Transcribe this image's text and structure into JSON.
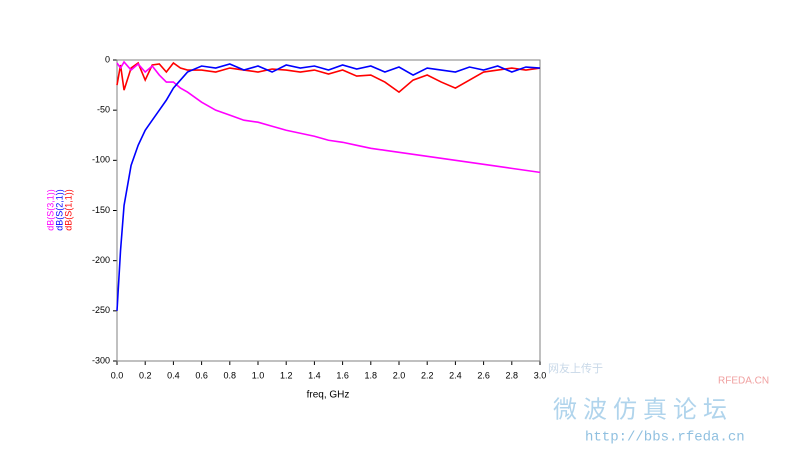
{
  "chart_data": {
    "type": "line",
    "xlabel": "freq, GHz",
    "x": [
      0,
      0.025,
      0.05,
      0.1,
      0.15,
      0.2,
      0.25,
      0.3,
      0.35,
      0.4,
      0.45,
      0.5,
      0.6,
      0.7,
      0.8,
      0.9,
      1.0,
      1.1,
      1.2,
      1.3,
      1.4,
      1.5,
      1.6,
      1.7,
      1.8,
      1.9,
      2.0,
      2.1,
      2.2,
      2.3,
      2.4,
      2.5,
      2.6,
      2.7,
      2.8,
      2.9,
      3.0
    ],
    "series": [
      {
        "name": "dB(S(3,1))",
        "color": "#ff00ff",
        "values": [
          -3,
          -8,
          -2,
          -10,
          -4,
          -12,
          -6,
          -15,
          -22,
          -22,
          -28,
          -32,
          -42,
          -50,
          -55,
          -60,
          -62,
          -66,
          -70,
          -73,
          -76,
          -80,
          -82,
          -85,
          -88,
          -90,
          -92,
          -94,
          -96,
          -98,
          -100,
          -102,
          -104,
          -106,
          -108,
          -110,
          -112
        ]
      },
      {
        "name": "dB(S(2,1))",
        "color": "#0000ff",
        "values": [
          -250,
          -190,
          -145,
          -105,
          -85,
          -70,
          -60,
          -50,
          -40,
          -28,
          -20,
          -12,
          -6,
          -8,
          -4,
          -10,
          -6,
          -12,
          -5,
          -8,
          -6,
          -10,
          -5,
          -9,
          -6,
          -12,
          -7,
          -15,
          -8,
          -10,
          -12,
          -7,
          -10,
          -6,
          -12,
          -7,
          -8
        ]
      },
      {
        "name": "dB(S(1,1))",
        "color": "#ff0000",
        "values": [
          -25,
          -5,
          -30,
          -8,
          -3,
          -20,
          -5,
          -4,
          -12,
          -3,
          -8,
          -10,
          -10,
          -12,
          -8,
          -10,
          -12,
          -9,
          -10,
          -12,
          -10,
          -14,
          -10,
          -16,
          -15,
          -22,
          -32,
          -20,
          -15,
          -22,
          -28,
          -20,
          -12,
          -10,
          -8,
          -10,
          -8
        ]
      }
    ],
    "xlim": [
      0,
      3
    ],
    "ylim": [
      -300,
      0
    ],
    "xticks": [
      {
        "value": 0,
        "label": "0.0"
      },
      {
        "value": 0.2,
        "label": "0.2"
      },
      {
        "value": 0.4,
        "label": "0.4"
      },
      {
        "value": 0.6,
        "label": "0.6"
      },
      {
        "value": 0.8,
        "label": "0.8"
      },
      {
        "value": 1,
        "label": "1.0"
      },
      {
        "value": 1.2,
        "label": "1.2"
      },
      {
        "value": 1.4,
        "label": "1.4"
      },
      {
        "value": 1.6,
        "label": "1.6"
      },
      {
        "value": 1.8,
        "label": "1.8"
      },
      {
        "value": 2,
        "label": "2.0"
      },
      {
        "value": 2.2,
        "label": "2.2"
      },
      {
        "value": 2.4,
        "label": "2.4"
      },
      {
        "value": 2.6,
        "label": "2.6"
      },
      {
        "value": 2.8,
        "label": "2.8"
      },
      {
        "value": 3,
        "label": "3.0"
      }
    ],
    "yticks": [
      0,
      -50,
      -100,
      -150,
      -200,
      -250,
      -300
    ],
    "grid": true,
    "watermark": [
      "网友上传于",
      "RFEDA.CN",
      "微波仿真论坛",
      "http://bbs.rfeda.cn"
    ]
  }
}
